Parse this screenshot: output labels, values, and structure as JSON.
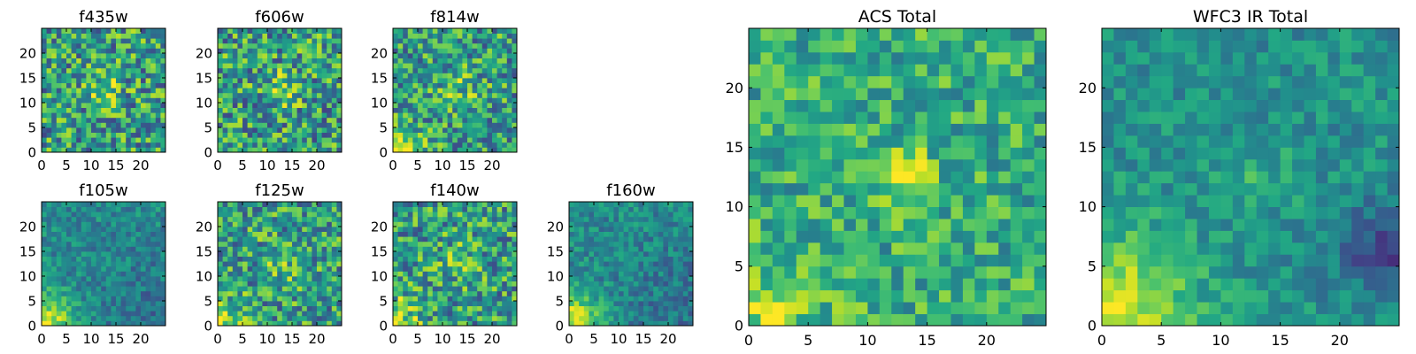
{
  "figure": {
    "description_visible": false
  },
  "chart_data": [
    {
      "type": "heatmap",
      "title": "f435w",
      "xticks": [
        0,
        5,
        10,
        15,
        20
      ],
      "yticks": [
        0,
        5,
        10,
        15,
        20
      ],
      "xlim": [
        0,
        25
      ],
      "ylim": [
        0,
        25
      ],
      "grid": false,
      "colormap": "viridis",
      "pattern": "noisy-center"
    },
    {
      "type": "heatmap",
      "title": "f606w",
      "xticks": [
        0,
        5,
        10,
        15,
        20
      ],
      "yticks": [
        0,
        5,
        10,
        15,
        20
      ],
      "xlim": [
        0,
        25
      ],
      "ylim": [
        0,
        25
      ],
      "grid": false,
      "colormap": "viridis",
      "pattern": "noisy-center"
    },
    {
      "type": "heatmap",
      "title": "f814w",
      "xticks": [
        0,
        5,
        10,
        15,
        20
      ],
      "yticks": [
        0,
        5,
        10,
        15,
        20
      ],
      "xlim": [
        0,
        25
      ],
      "ylim": [
        0,
        25
      ],
      "grid": false,
      "colormap": "viridis",
      "pattern": "noisy-corner"
    },
    {
      "type": "heatmap",
      "title": "f105w",
      "xticks": [
        0,
        5,
        10,
        15,
        20
      ],
      "yticks": [
        0,
        5,
        10,
        15,
        20
      ],
      "xlim": [
        0,
        25
      ],
      "ylim": [
        0,
        25
      ],
      "grid": false,
      "colormap": "viridis",
      "pattern": "smooth-corner"
    },
    {
      "type": "heatmap",
      "title": "f125w",
      "xticks": [
        0,
        5,
        10,
        15,
        20
      ],
      "yticks": [
        0,
        5,
        10,
        15,
        20
      ],
      "xlim": [
        0,
        25
      ],
      "ylim": [
        0,
        25
      ],
      "grid": false,
      "colormap": "viridis",
      "pattern": "noisy-corner"
    },
    {
      "type": "heatmap",
      "title": "f140w",
      "xticks": [
        0,
        5,
        10,
        15,
        20
      ],
      "yticks": [
        0,
        5,
        10,
        15,
        20
      ],
      "xlim": [
        0,
        25
      ],
      "ylim": [
        0,
        25
      ],
      "grid": false,
      "colormap": "viridis",
      "pattern": "noisy-corner"
    },
    {
      "type": "heatmap",
      "title": "f160w",
      "xticks": [
        0,
        5,
        10,
        15,
        20
      ],
      "yticks": [
        0,
        5,
        10,
        15,
        20
      ],
      "xlim": [
        0,
        25
      ],
      "ylim": [
        0,
        25
      ],
      "grid": false,
      "colormap": "viridis",
      "pattern": "smooth-corner"
    },
    {
      "type": "heatmap",
      "title": "ACS Total",
      "xticks": [
        0,
        5,
        10,
        15,
        20
      ],
      "yticks": [
        0,
        5,
        10,
        15,
        20
      ],
      "xlim": [
        0,
        25
      ],
      "ylim": [
        0,
        25
      ],
      "grid": false,
      "colormap": "viridis",
      "pattern": "center-bright"
    },
    {
      "type": "heatmap",
      "title": "WFC3 IR Total",
      "xticks": [
        0,
        5,
        10,
        15,
        20
      ],
      "yticks": [
        0,
        5,
        10,
        15,
        20
      ],
      "xlim": [
        0,
        25
      ],
      "ylim": [
        0,
        25
      ],
      "grid": false,
      "colormap": "viridis",
      "pattern": "smooth-corner-dark-right"
    }
  ]
}
